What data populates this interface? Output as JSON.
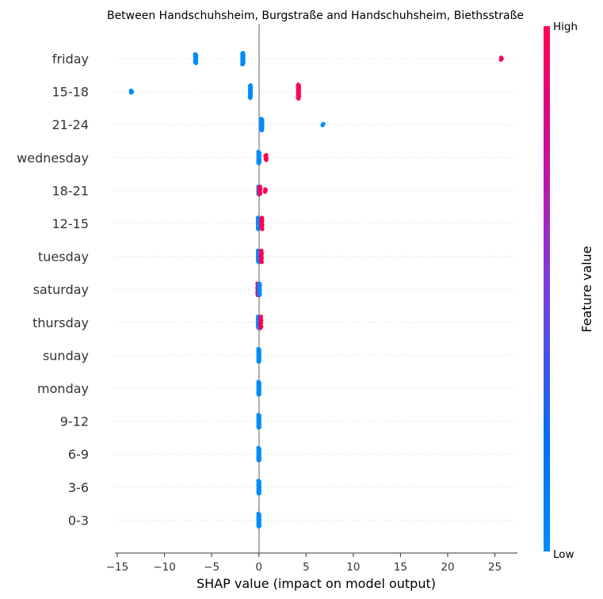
{
  "chart_data": {
    "type": "scatter",
    "subtype": "shap-beeswarm",
    "title": "Between Handschuhsheim, Burgstraße and Handschuhsheim, Biethsstraße",
    "xlabel": "SHAP value (impact on model output)",
    "xlim": [
      -15.5,
      27.5
    ],
    "xticks": [
      -15,
      -10,
      -5,
      0,
      5,
      10,
      15,
      20,
      25
    ],
    "grid": false,
    "colorbar": {
      "label": "Feature value",
      "high_label": "High",
      "low_label": "Low",
      "high_color": "#ff0051",
      "low_color": "#008bfb"
    },
    "features": [
      {
        "name": "friday",
        "groups": [
          {
            "x": -6.7,
            "n": 18,
            "fv": 0.0,
            "spread": 0.35
          },
          {
            "x": -1.7,
            "n": 22,
            "fv": 0.0,
            "spread": 0.45
          },
          {
            "x": 25.7,
            "n": 3,
            "fv": 1.0,
            "spread": 0.08
          }
        ]
      },
      {
        "name": "15-18",
        "groups": [
          {
            "x": -13.5,
            "n": 4,
            "fv": 0.0,
            "spread": 0.08
          },
          {
            "x": -0.9,
            "n": 18,
            "fv": 0.0,
            "spread": 0.5
          },
          {
            "x": 4.2,
            "n": 24,
            "fv": 1.0,
            "spread": 0.55
          }
        ]
      },
      {
        "name": "21-24",
        "groups": [
          {
            "x": 0.3,
            "n": 24,
            "fv": 0.0,
            "spread": 0.45
          },
          {
            "x": 6.8,
            "n": 2,
            "fv": 0.0,
            "spread": 0.05
          }
        ]
      },
      {
        "name": "wednesday",
        "groups": [
          {
            "x": 0.0,
            "n": 22,
            "fv": 0.0,
            "spread": 0.45
          },
          {
            "x": 0.75,
            "n": 6,
            "fv": 1.0,
            "spread": 0.2
          }
        ]
      },
      {
        "name": "18-21",
        "groups": [
          {
            "x": 0.0,
            "n": 22,
            "fv": 0.0,
            "spread": 0.3
          },
          {
            "x": 0.1,
            "n": 10,
            "fv": 1.0,
            "spread": 0.3
          },
          {
            "x": 0.7,
            "n": 3,
            "fv": 1.0,
            "spread": 0.1
          }
        ]
      },
      {
        "name": "12-15",
        "groups": [
          {
            "x": -0.05,
            "n": 22,
            "fv": 0.0,
            "spread": 0.45
          },
          {
            "x": 0.3,
            "n": 14,
            "fv": 1.0,
            "spread": 0.45
          }
        ]
      },
      {
        "name": "tuesday",
        "groups": [
          {
            "x": -0.05,
            "n": 20,
            "fv": 0.0,
            "spread": 0.45
          },
          {
            "x": 0.25,
            "n": 14,
            "fv": 1.0,
            "spread": 0.45
          }
        ]
      },
      {
        "name": "saturday",
        "groups": [
          {
            "x": -0.1,
            "n": 14,
            "fv": 1.0,
            "spread": 0.45
          },
          {
            "x": 0.05,
            "n": 16,
            "fv": 0.0,
            "spread": 0.45
          }
        ]
      },
      {
        "name": "thursday",
        "groups": [
          {
            "x": -0.05,
            "n": 20,
            "fv": 0.0,
            "spread": 0.45
          },
          {
            "x": 0.2,
            "n": 10,
            "fv": 1.0,
            "spread": 0.45
          }
        ]
      },
      {
        "name": "sunday",
        "groups": [
          {
            "x": 0.0,
            "n": 24,
            "fv": 0.0,
            "spread": 0.5
          }
        ]
      },
      {
        "name": "monday",
        "groups": [
          {
            "x": 0.0,
            "n": 24,
            "fv": 0.0,
            "spread": 0.5
          }
        ]
      },
      {
        "name": "9-12",
        "groups": [
          {
            "x": 0.0,
            "n": 24,
            "fv": 0.0,
            "spread": 0.5
          }
        ]
      },
      {
        "name": "6-9",
        "groups": [
          {
            "x": 0.0,
            "n": 24,
            "fv": 0.0,
            "spread": 0.5
          }
        ]
      },
      {
        "name": "3-6",
        "groups": [
          {
            "x": 0.0,
            "n": 24,
            "fv": 0.0,
            "spread": 0.5
          }
        ]
      },
      {
        "name": "0-3",
        "groups": [
          {
            "x": 0.0,
            "n": 24,
            "fv": 0.0,
            "spread": 0.5
          }
        ]
      }
    ]
  }
}
